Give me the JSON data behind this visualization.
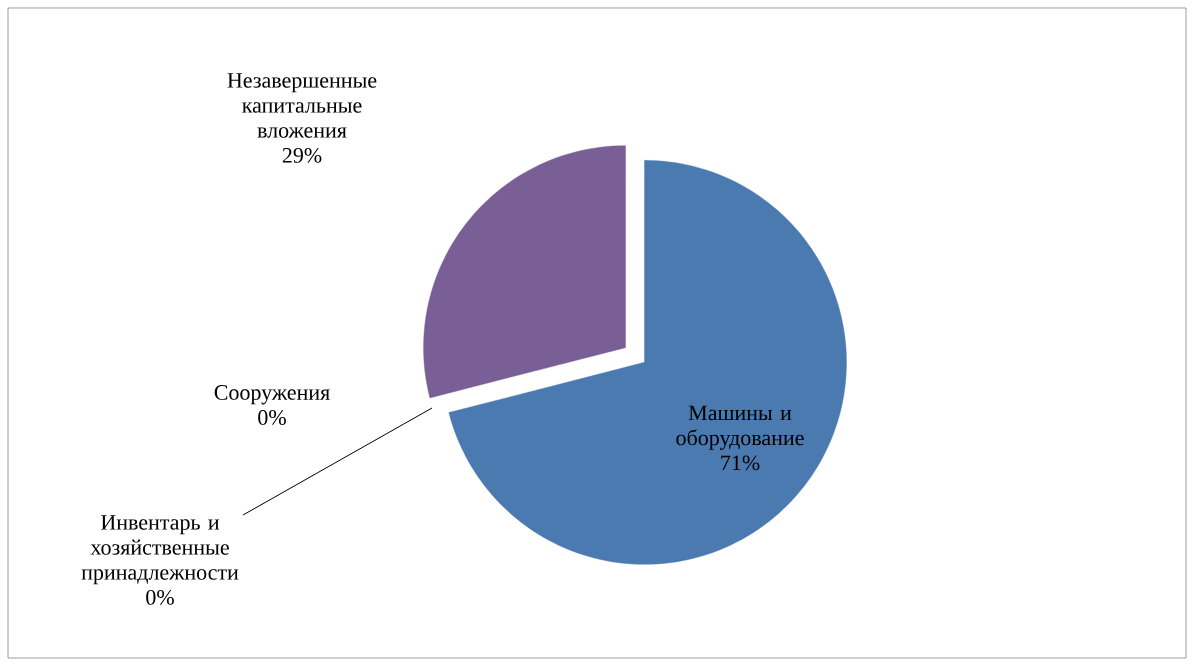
{
  "chart_data": {
    "type": "pie",
    "categories": [
      "Машины и оборудование",
      "Инвентарь и хозяйственные принадлежности",
      "Сооружения",
      "Незавершенные капитальные вложения"
    ],
    "values": [
      71,
      0,
      0,
      29
    ],
    "value_labels": [
      "71%",
      "0%",
      "0%",
      "29%"
    ],
    "colors": [
      "#4a7ab0",
      "#b94a48",
      "#9bbb59",
      "#7a5f96"
    ],
    "legend": false
  }
}
